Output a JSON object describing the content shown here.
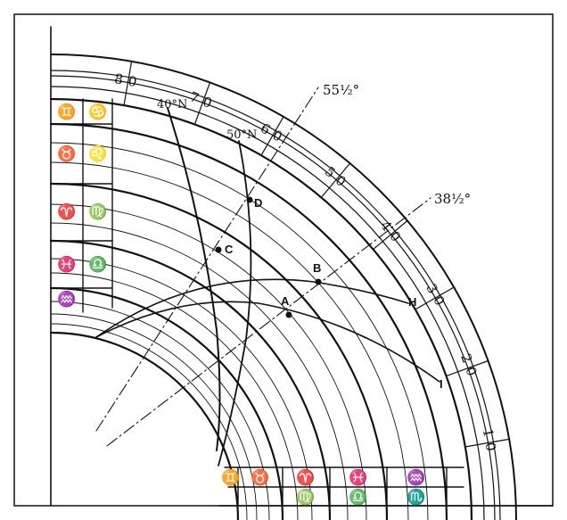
{
  "scale_labels": [
    "10",
    "20",
    "30",
    "40",
    "50",
    "60",
    "70",
    "80"
  ],
  "angle_labels": {
    "angle_a": "55½°",
    "angle_b": "38½°"
  },
  "latitude_labels": {
    "lat_40": "40°N",
    "lat_50": "50°N"
  },
  "point_labels": {
    "a": "A",
    "b": "B",
    "c": "C",
    "d": "D",
    "h": "H",
    "i": "I"
  },
  "zodiac_left": {
    "col_outer": [
      "♊",
      "♉",
      "♈",
      "♓",
      "♒"
    ],
    "col_inner": [
      "♋",
      "♌",
      "♍",
      "♎"
    ]
  },
  "zodiac_bottom": {
    "row_upper": [
      "♊",
      "♉",
      "♈",
      "♓",
      "♒"
    ],
    "row_lower": [
      "♍",
      "♎",
      "♏"
    ]
  }
}
